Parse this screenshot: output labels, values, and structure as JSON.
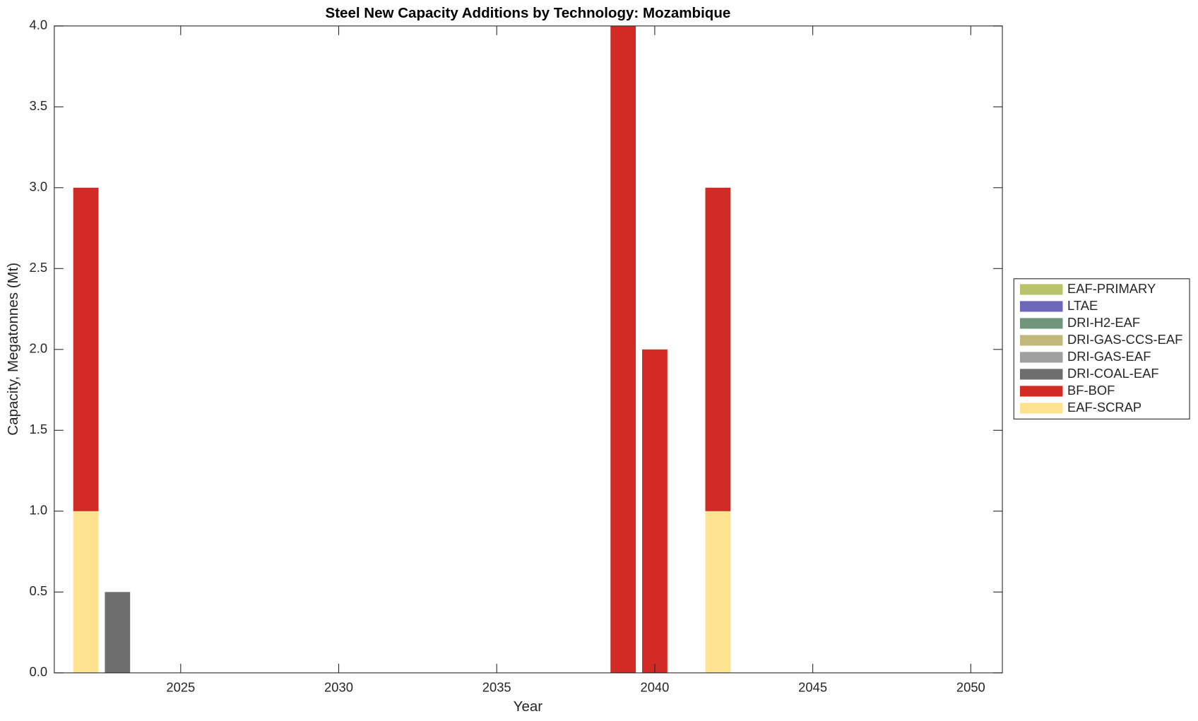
{
  "chart_data": {
    "type": "stacked-bar",
    "title": "Steel New Capacity Additions by Technology: Mozambique",
    "x_label": "Year",
    "y_label": "Capacity, Megatonnes (Mt)",
    "x": [
      2022,
      2023,
      2039,
      2040,
      2042
    ],
    "series": [
      {
        "name": "EAF-SCRAP",
        "color": "#fde290",
        "values": [
          1,
          0,
          0,
          0,
          1
        ]
      },
      {
        "name": "BF-BOF",
        "color": "#d22b25",
        "values": [
          2,
          0,
          4,
          2,
          2
        ]
      },
      {
        "name": "DRI-COAL-EAF",
        "color": "#6e6e6e",
        "values": [
          0,
          0.5,
          0,
          0,
          0
        ]
      },
      {
        "name": "DRI-GAS-EAF",
        "color": "#a0a0a0",
        "values": [
          0,
          0,
          0,
          0,
          0
        ]
      },
      {
        "name": "DRI-GAS-CCS-EAF",
        "color": "#c1b97c",
        "values": [
          0,
          0,
          0,
          0,
          0
        ]
      },
      {
        "name": "DRI-H2-EAF",
        "color": "#6f957a",
        "values": [
          0,
          0,
          0,
          0,
          0
        ]
      },
      {
        "name": "LTAE",
        "color": "#6e66b8",
        "values": [
          0,
          0,
          0,
          0,
          0
        ]
      },
      {
        "name": "EAF-PRIMARY",
        "color": "#b9c46a",
        "values": [
          0,
          0,
          0,
          0,
          0
        ]
      }
    ],
    "xlim": [
      2021,
      2051
    ],
    "xticks": [
      2025,
      2030,
      2035,
      2040,
      2045,
      2050
    ],
    "ylim": [
      0,
      4
    ],
    "yticks": [
      {
        "value": 0,
        "label": "0.0"
      },
      {
        "value": 0.5,
        "label": "0.5"
      },
      {
        "value": 1,
        "label": "1.0"
      },
      {
        "value": 1.5,
        "label": "1.5"
      },
      {
        "value": 2,
        "label": "2.0"
      },
      {
        "value": 2.5,
        "label": "2.5"
      },
      {
        "value": 3,
        "label": "3.0"
      },
      {
        "value": 3.5,
        "label": "3.5"
      },
      {
        "value": 4,
        "label": "4.0"
      }
    ],
    "legend": "outside-right",
    "legend_order": "reversed"
  }
}
